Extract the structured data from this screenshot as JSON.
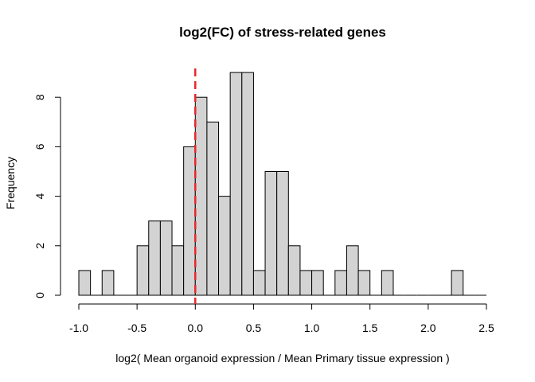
{
  "chart_data": {
    "type": "histogram",
    "title": "log2(FC) of stress-related genes",
    "xlabel": "log2( Mean organoid expression / Mean Primary tissue expression )",
    "ylabel": "Frequency",
    "xlim": [
      -1.0,
      2.5
    ],
    "ylim": [
      0,
      9
    ],
    "bin_width": 0.1,
    "bin_start": -1.0,
    "counts": [
      1,
      0,
      1,
      0,
      0,
      2,
      3,
      3,
      2,
      6,
      8,
      7,
      4,
      9,
      9,
      1,
      5,
      5,
      2,
      1,
      1,
      0,
      1,
      2,
      1,
      0,
      1,
      0,
      0,
      0,
      0,
      0,
      1,
      0,
      0
    ],
    "x_ticks": [
      "-1.0",
      "-0.5",
      "0.0",
      "0.5",
      "1.0",
      "1.5",
      "2.0",
      "2.5"
    ],
    "x_tick_values": [
      -1.0,
      -0.5,
      0.0,
      0.5,
      1.0,
      1.5,
      2.0,
      2.5
    ],
    "y_ticks": [
      "0",
      "2",
      "4",
      "6",
      "8"
    ],
    "y_tick_values": [
      0,
      2,
      4,
      6,
      8
    ],
    "reference_line": {
      "x": 0.0,
      "style": "dashed",
      "color": "#e8282b"
    },
    "bar_fill": "#d3d3d3",
    "bar_stroke": "#000000",
    "grid": false
  }
}
